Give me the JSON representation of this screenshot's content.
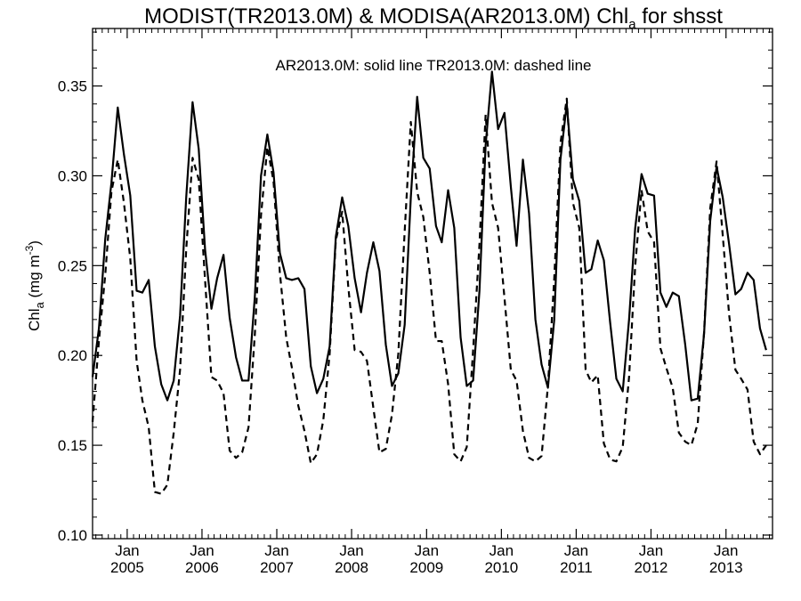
{
  "chart_data": {
    "type": "line",
    "title": "MODIST(TR2013.0M) & MODISA(AR2013.0M)  Chl",
    "title_sub": "a",
    "title_suffix": " for shsst",
    "ylabel_main": "Chl",
    "ylabel_sub": "a",
    "ylabel_units": " (mg m",
    "ylabel_sup": "-3",
    "ylabel_close": ")",
    "annotation": "AR2013.0M: solid line   TR2013.0M: dashed line",
    "xlim": [
      "2004-07-16",
      "2013-08-16"
    ],
    "ylim": [
      0.098,
      0.382
    ],
    "yticks": [
      0.1,
      0.15,
      0.2,
      0.25,
      0.3,
      0.35
    ],
    "ytick_labels": [
      "0.10",
      "0.15",
      "0.20",
      "0.25",
      "0.30",
      "0.35"
    ],
    "xtick_month_label": "Jan",
    "xticks": [
      {
        "date": "2005-01-01",
        "year": "2005"
      },
      {
        "date": "2006-01-01",
        "year": "2006"
      },
      {
        "date": "2007-01-01",
        "year": "2007"
      },
      {
        "date": "2008-01-01",
        "year": "2008"
      },
      {
        "date": "2009-01-01",
        "year": "2009"
      },
      {
        "date": "2010-01-01",
        "year": "2010"
      },
      {
        "date": "2011-01-01",
        "year": "2011"
      },
      {
        "date": "2012-01-01",
        "year": "2012"
      },
      {
        "date": "2013-01-01",
        "year": "2013"
      }
    ],
    "x_start": "2004-07",
    "series": [
      {
        "name": "AR2013.0M",
        "style": "solid",
        "values": [
          0.188,
          0.215,
          0.265,
          0.296,
          0.338,
          0.312,
          0.289,
          0.236,
          0.235,
          0.242,
          0.205,
          0.184,
          0.175,
          0.186,
          0.222,
          0.288,
          0.341,
          0.315,
          0.259,
          0.226,
          0.243,
          0.256,
          0.221,
          0.199,
          0.186,
          0.186,
          0.233,
          0.3,
          0.323,
          0.302,
          0.257,
          0.243,
          0.242,
          0.243,
          0.237,
          0.194,
          0.179,
          0.187,
          0.205,
          0.266,
          0.288,
          0.272,
          0.243,
          0.224,
          0.246,
          0.263,
          0.247,
          0.206,
          0.183,
          0.19,
          0.217,
          0.288,
          0.344,
          0.31,
          0.304,
          0.272,
          0.263,
          0.292,
          0.271,
          0.21,
          0.183,
          0.186,
          0.236,
          0.317,
          0.358,
          0.326,
          0.335,
          0.294,
          0.261,
          0.309,
          0.279,
          0.22,
          0.195,
          0.182,
          0.22,
          0.309,
          0.34,
          0.298,
          0.286,
          0.246,
          0.248,
          0.264,
          0.253,
          0.218,
          0.187,
          0.18,
          0.22,
          0.271,
          0.301,
          0.29,
          0.289,
          0.235,
          0.227,
          0.235,
          0.233,
          0.206,
          0.175,
          0.176,
          0.212,
          0.275,
          0.305,
          0.288,
          0.262,
          0.234,
          0.237,
          0.246,
          0.242,
          0.215,
          0.203
        ]
      },
      {
        "name": "TR2013.0M",
        "style": "dashed",
        "values": [
          0.163,
          0.208,
          0.245,
          0.291,
          0.309,
          0.285,
          0.254,
          0.197,
          0.175,
          0.16,
          0.124,
          0.123,
          0.128,
          0.157,
          0.192,
          0.259,
          0.31,
          0.298,
          0.242,
          0.188,
          0.186,
          0.179,
          0.147,
          0.143,
          0.146,
          0.16,
          0.212,
          0.278,
          0.316,
          0.297,
          0.246,
          0.21,
          0.193,
          0.172,
          0.158,
          0.14,
          0.145,
          0.164,
          0.201,
          0.264,
          0.28,
          0.238,
          0.203,
          0.202,
          0.197,
          0.171,
          0.146,
          0.148,
          0.167,
          0.201,
          0.269,
          0.33,
          0.291,
          0.277,
          0.246,
          0.208,
          0.208,
          0.184,
          0.145,
          0.141,
          0.149,
          0.203,
          0.262,
          0.334,
          0.285,
          0.271,
          0.232,
          0.192,
          0.186,
          0.158,
          0.143,
          0.141,
          0.144,
          0.183,
          0.243,
          0.318,
          0.343,
          0.285,
          0.271,
          0.192,
          0.185,
          0.189,
          0.151,
          0.142,
          0.141,
          0.149,
          0.188,
          0.25,
          0.292,
          0.269,
          0.263,
          0.204,
          0.193,
          0.182,
          0.157,
          0.152,
          0.15,
          0.162,
          0.213,
          0.282,
          0.308,
          0.267,
          0.223,
          0.192,
          0.187,
          0.181,
          0.152,
          0.145,
          0.15
        ]
      }
    ],
    "grid": false,
    "legend": "none"
  }
}
